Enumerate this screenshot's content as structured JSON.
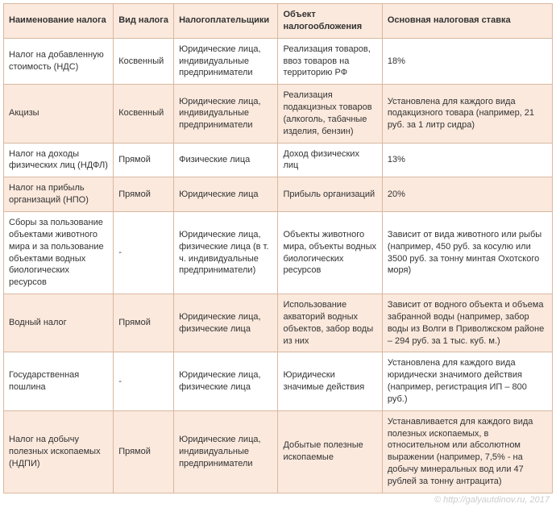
{
  "table": {
    "columns": [
      "Наименование налога",
      "Вид налога",
      "Налогоплательщики",
      "Объект налогообложения",
      "Основная налоговая ставка"
    ],
    "col_widths": [
      "20%",
      "11%",
      "19%",
      "19%",
      "31%"
    ],
    "header_bg": "#fbe9dd",
    "border_color": "#d9b8a0",
    "row_alt_bg": "#fbe9dd",
    "row_bg": "#ffffff",
    "font_size": 11,
    "rows": [
      {
        "name": "Налог на добавленную стоимость (НДС)",
        "type": "Косвенный",
        "payers": "Юридические лица, индивидуальные предприниматели",
        "object": "Реализация товаров, ввоз товаров на территорию РФ",
        "rate": "18%"
      },
      {
        "name": "Акцизы",
        "type": "Косвенный",
        "payers": "Юридические лица, индивидуальные предприниматели",
        "object": "Реализация подакцизных товаров (алкоголь, табачные изделия, бензин)",
        "rate": "Установлена для каждого вида подакцизного товара (например, 21 руб. за 1 литр сидра)"
      },
      {
        "name": "Налог на доходы физических лиц (НДФЛ)",
        "type": "Прямой",
        "payers": "Физические лица",
        "object": "Доход физических лиц",
        "rate": "13%"
      },
      {
        "name": "Налог на прибыль организаций (НПО)",
        "type": "Прямой",
        "payers": "Юридические лица",
        "object": "Прибыль организаций",
        "rate": "20%"
      },
      {
        "name": "Сборы за пользование объектами животного мира и за пользование объектами водных биологических ресурсов",
        "type": "-",
        "payers": "Юридические лица, физические лица (в т. ч. индивидуальные предприниматели)",
        "object": "Объекты животного мира, объекты водных биологических ресурсов",
        "rate": "Зависит от вида животного или рыбы (например, 450 руб. за косулю или 3500 руб. за тонну минтая Охотского моря)"
      },
      {
        "name": "Водный налог",
        "type": "Прямой",
        "payers": "Юридические лица, физические лица",
        "object": "Использование акваторий водных объектов, забор воды из них",
        "rate": "Зависит от водного объекта и объема забранной воды (например, забор воды из Волги в Приволжском районе – 294 руб. за 1 тыс. куб. м.)"
      },
      {
        "name": "Государственная пошлина",
        "type": "-",
        "payers": "Юридические лица, физические лица",
        "object": "Юридически значимые действия",
        "rate": "Установлена для каждого вида юридически значимого действия (например, регистрация ИП – 800 руб.)"
      },
      {
        "name": "Налог на добычу полезных ископаемых (НДПИ)",
        "type": "Прямой",
        "payers": "Юридические лица, индивидуальные предприниматели",
        "object": "Добытые полезные ископаемые",
        "rate": "Устанавливается для каждого вида полезных ископаемых, в относительном или абсолютном выражении (например, 7,5% - на добычу минеральных вод или 47 рублей за тонну антрацита)"
      }
    ]
  },
  "footer": "© http://galyautdinov.ru, 2017"
}
